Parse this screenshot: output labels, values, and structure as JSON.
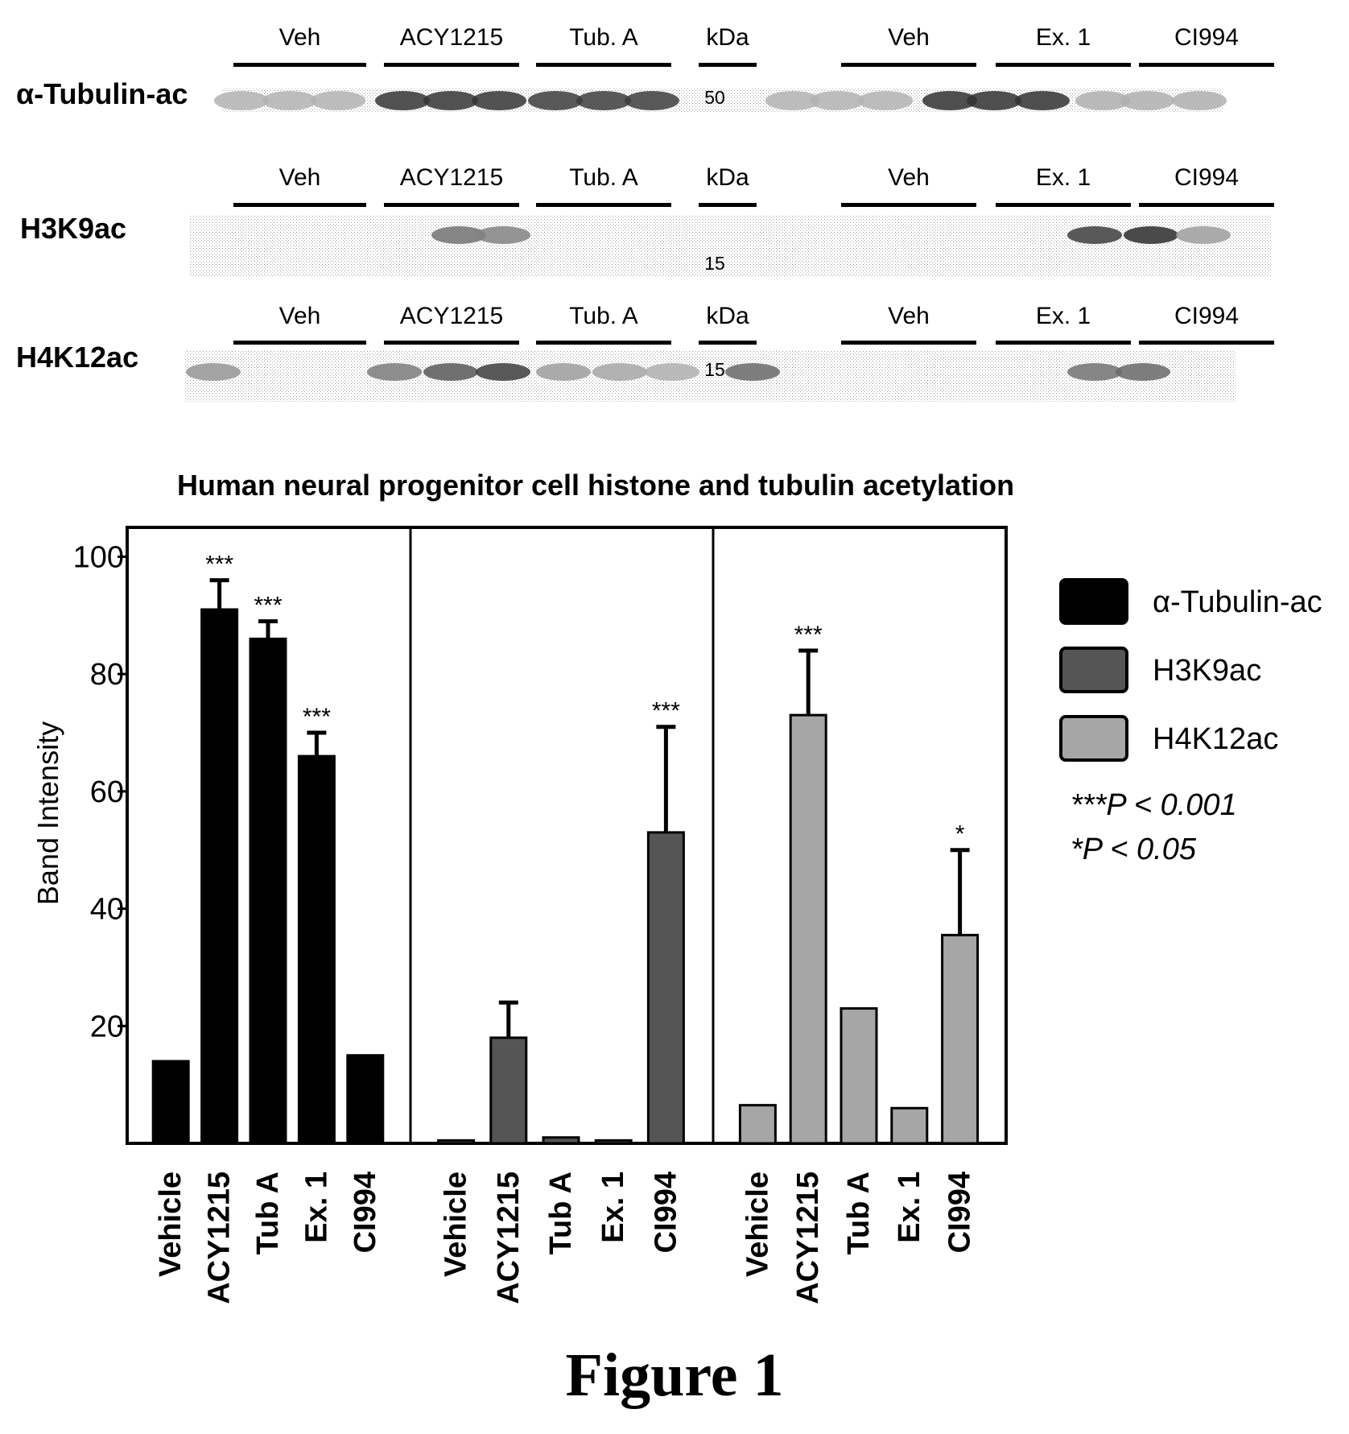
{
  "blots": [
    {
      "label": "α-Tubulin-ac",
      "lane_labels": [
        "Veh",
        "ACY1215",
        "Tub. A",
        "kDa",
        "Veh",
        "Ex. 1",
        "CI994"
      ],
      "marker": "50"
    },
    {
      "label": "H3K9ac",
      "lane_labels": [
        "Veh",
        "ACY1215",
        "Tub. A",
        "kDa",
        "Veh",
        "Ex. 1",
        "CI994"
      ],
      "marker": "15"
    },
    {
      "label": "H4K12ac",
      "lane_labels": [
        "Veh",
        "ACY1215",
        "Tub. A",
        "kDa",
        "Veh",
        "Ex. 1",
        "CI994"
      ],
      "marker": "15"
    }
  ],
  "chart_data": {
    "type": "bar",
    "title": "Human neural progenitor cell histone and tubulin acetylation",
    "ylabel": "Band Intensity",
    "xlabel": "",
    "ylim": [
      0,
      105
    ],
    "yticks": [
      20,
      40,
      60,
      80,
      100
    ],
    "grid": false,
    "legend_position": "right",
    "categories": [
      "Vehicle",
      "ACY1215",
      "Tub A",
      "Ex. 1",
      "CI994"
    ],
    "series": [
      {
        "name": "α-Tubulin-ac",
        "color": "#000000",
        "values": [
          14,
          91,
          86,
          66,
          15
        ],
        "errors": [
          0,
          5,
          3,
          4,
          0
        ],
        "significance": [
          "",
          "***",
          "***",
          "***",
          ""
        ]
      },
      {
        "name": "H3K9ac",
        "color": "#555555",
        "values": [
          0.5,
          18,
          1,
          0.5,
          53
        ],
        "errors": [
          0,
          6,
          0,
          0,
          18
        ],
        "significance": [
          "",
          "",
          "",
          "",
          "***"
        ]
      },
      {
        "name": "H4K12ac",
        "color": "#a6a6a6",
        "values": [
          6.5,
          73,
          23,
          6,
          35.5
        ],
        "errors": [
          0,
          11,
          0,
          0,
          14.5
        ],
        "significance": [
          "",
          "***",
          "",
          "",
          "*"
        ]
      }
    ],
    "annotations": [
      "***P < 0.001",
      "*P < 0.05"
    ]
  },
  "caption": "Figure 1"
}
